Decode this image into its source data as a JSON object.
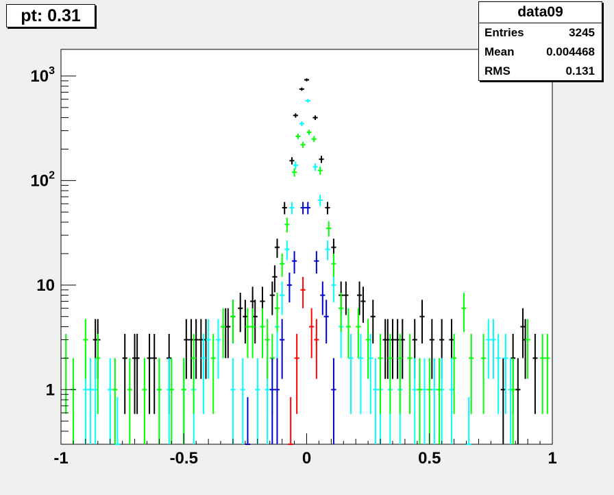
{
  "title": "pt: 0.31",
  "stats": {
    "name": "data09",
    "rows": [
      {
        "label": "Entries",
        "value": "3245"
      },
      {
        "label": "Mean",
        "value": "0.004468"
      },
      {
        "label": "RMS",
        "value": "0.131"
      }
    ]
  },
  "colors": {
    "background": "#f0f0f0",
    "plot_frame": "#ffffff",
    "black": "#000000",
    "cyan": "#00ffff",
    "green": "#00ff00",
    "blue": "#0000cc",
    "red": "#ff0000"
  },
  "chart_data": {
    "type": "scatter",
    "title": "",
    "xlabel": "",
    "ylabel": "",
    "xlim": [
      -1,
      1
    ],
    "ylim": [
      0.3,
      1800
    ],
    "yscale": "log",
    "grid": false,
    "legend": "none",
    "xticks": [
      "-1",
      "-0.5",
      "0",
      "0.5",
      "1"
    ],
    "yticks": [
      {
        "value": 1,
        "base": "1",
        "exp": ""
      },
      {
        "value": 10,
        "base": "10",
        "exp": ""
      },
      {
        "value": 100,
        "base": "10",
        "exp": "2"
      },
      {
        "value": 1000,
        "base": "10",
        "exp": "3"
      }
    ],
    "series": [
      {
        "color": "#000000",
        "points": [
          [
            -0.86,
            3
          ],
          [
            -0.85,
            3
          ],
          [
            -0.74,
            2
          ],
          [
            -0.7,
            2
          ],
          [
            -0.69,
            2
          ],
          [
            -0.64,
            2
          ],
          [
            -0.62,
            2
          ],
          [
            -0.56,
            2
          ],
          [
            -0.49,
            3
          ],
          [
            -0.47,
            3
          ],
          [
            -0.45,
            3
          ],
          [
            -0.43,
            3
          ],
          [
            -0.41,
            3
          ],
          [
            -0.33,
            4
          ],
          [
            -0.32,
            4
          ],
          [
            -0.3,
            5
          ],
          [
            -0.27,
            6
          ],
          [
            -0.25,
            5
          ],
          [
            -0.22,
            7
          ],
          [
            -0.21,
            5
          ],
          [
            -0.18,
            7
          ],
          [
            -0.14,
            8
          ],
          [
            -0.13,
            12
          ],
          [
            -0.12,
            23
          ],
          [
            -0.09,
            55
          ],
          [
            -0.06,
            155
          ],
          [
            -0.045,
            420
          ],
          [
            -0.02,
            750
          ],
          [
            0.0,
            920
          ],
          [
            0.035,
            400
          ],
          [
            0.06,
            160
          ],
          [
            0.085,
            55
          ],
          [
            0.11,
            23
          ],
          [
            0.14,
            8
          ],
          [
            0.16,
            8
          ],
          [
            0.215,
            8
          ],
          [
            0.23,
            7
          ],
          [
            0.27,
            5
          ],
          [
            0.32,
            3
          ],
          [
            0.33,
            3
          ],
          [
            0.35,
            3
          ],
          [
            0.37,
            3
          ],
          [
            0.39,
            3
          ],
          [
            0.44,
            3
          ],
          [
            0.47,
            5
          ],
          [
            0.51,
            3
          ],
          [
            0.55,
            3
          ],
          [
            0.59,
            3
          ],
          [
            0.88,
            4
          ],
          [
            0.89,
            3
          ],
          [
            0.84,
            2
          ],
          [
            0.8,
            1
          ],
          [
            0.86,
            1
          ],
          [
            0.93,
            2
          ]
        ]
      },
      {
        "color": "#00ffff",
        "points": [
          [
            -0.9,
            1
          ],
          [
            -0.88,
            1
          ],
          [
            -0.86,
            1
          ],
          [
            -0.8,
            1
          ],
          [
            -0.77,
            0.3
          ],
          [
            -0.6,
            1
          ],
          [
            -0.56,
            1
          ],
          [
            -0.5,
            1
          ],
          [
            -0.46,
            1
          ],
          [
            -0.42,
            2
          ],
          [
            -0.4,
            3
          ],
          [
            -0.36,
            3
          ],
          [
            -0.3,
            1
          ],
          [
            -0.26,
            1
          ],
          [
            -0.2,
            1
          ],
          [
            -0.16,
            1
          ],
          [
            -0.12,
            4
          ],
          [
            -0.1,
            8
          ],
          [
            -0.08,
            22
          ],
          [
            -0.06,
            55
          ],
          [
            -0.045,
            140
          ],
          [
            -0.02,
            350
          ],
          [
            0.005,
            580
          ],
          [
            0.035,
            135
          ],
          [
            0.055,
            65
          ],
          [
            0.085,
            22
          ],
          [
            0.11,
            10
          ],
          [
            0.14,
            4
          ],
          [
            0.18,
            2
          ],
          [
            0.22,
            2
          ],
          [
            0.26,
            2
          ],
          [
            0.28,
            1
          ],
          [
            0.3,
            1
          ],
          [
            0.34,
            1
          ],
          [
            0.38,
            1
          ],
          [
            0.44,
            1
          ],
          [
            0.48,
            1
          ],
          [
            0.52,
            1
          ],
          [
            0.55,
            1
          ],
          [
            0.59,
            1
          ],
          [
            0.66,
            0.3
          ],
          [
            0.74,
            3
          ],
          [
            0.76,
            3
          ],
          [
            0.78,
            2
          ],
          [
            0.81,
            2
          ],
          [
            0.83,
            1
          ]
        ]
      },
      {
        "color": "#00ff00",
        "points": [
          [
            -0.98,
            2
          ],
          [
            -0.95,
            1
          ],
          [
            -0.9,
            3
          ],
          [
            -0.85,
            2
          ],
          [
            -0.78,
            1
          ],
          [
            -0.72,
            1
          ],
          [
            -0.66,
            1
          ],
          [
            -0.6,
            1
          ],
          [
            -0.55,
            1
          ],
          [
            -0.5,
            1
          ],
          [
            -0.46,
            2
          ],
          [
            -0.38,
            2
          ],
          [
            -0.34,
            4
          ],
          [
            -0.3,
            5
          ],
          [
            -0.24,
            4
          ],
          [
            -0.22,
            4
          ],
          [
            -0.18,
            4
          ],
          [
            -0.16,
            3
          ],
          [
            -0.14,
            2
          ],
          [
            -0.12,
            6
          ],
          [
            -0.1,
            16
          ],
          [
            -0.08,
            38
          ],
          [
            -0.05,
            120
          ],
          [
            -0.035,
            265
          ],
          [
            -0.015,
            220
          ],
          [
            0.01,
            290
          ],
          [
            0.03,
            250
          ],
          [
            0.055,
            125
          ],
          [
            0.09,
            35
          ],
          [
            0.11,
            16
          ],
          [
            0.14,
            6
          ],
          [
            0.17,
            4
          ],
          [
            0.21,
            4
          ],
          [
            0.25,
            3
          ],
          [
            0.3,
            2
          ],
          [
            0.34,
            2
          ],
          [
            0.38,
            2
          ],
          [
            0.42,
            2
          ],
          [
            0.46,
            1
          ],
          [
            0.5,
            1
          ],
          [
            0.54,
            1
          ],
          [
            0.6,
            2
          ],
          [
            0.64,
            6
          ],
          [
            0.67,
            2
          ],
          [
            0.72,
            2
          ],
          [
            0.84,
            1
          ],
          [
            0.9,
            3
          ],
          [
            0.96,
            2
          ],
          [
            0.98,
            2
          ]
        ]
      },
      {
        "color": "#0000cc",
        "points": [
          [
            -0.24,
            0.3
          ],
          [
            -0.14,
            1
          ],
          [
            -0.12,
            1
          ],
          [
            -0.1,
            3
          ],
          [
            -0.07,
            10
          ],
          [
            -0.05,
            17
          ],
          [
            -0.015,
            55
          ],
          [
            0.005,
            55
          ],
          [
            0.04,
            17
          ],
          [
            0.065,
            8
          ],
          [
            0.08,
            5
          ],
          [
            0.11,
            1
          ]
        ]
      },
      {
        "color": "#ff0000",
        "points": [
          [
            -0.065,
            0.3
          ],
          [
            -0.04,
            2
          ],
          [
            -0.015,
            9
          ],
          [
            0.02,
            4
          ],
          [
            0.04,
            3
          ]
        ]
      }
    ]
  }
}
